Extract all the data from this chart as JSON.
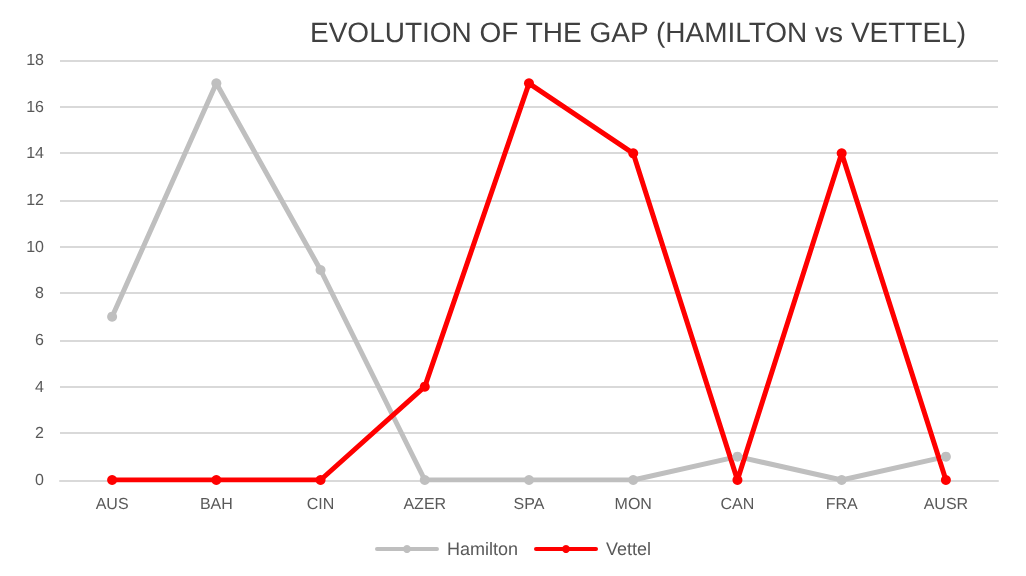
{
  "chart_data": {
    "type": "line",
    "title": "EVOLUTION OF THE GAP (HAMILTON vs VETTEL)",
    "categories": [
      "AUS",
      "BAH",
      "CIN",
      "AZER",
      "SPA",
      "MON",
      "CAN",
      "FRA",
      "AUSR"
    ],
    "series": [
      {
        "name": "Hamilton",
        "color": "#bfbfbf",
        "values": [
          7,
          17,
          9,
          0,
          0,
          0,
          1,
          0,
          1
        ]
      },
      {
        "name": "Vettel",
        "color": "#ff0000",
        "values": [
          0,
          0,
          0,
          4,
          17,
          14,
          0,
          14,
          0
        ]
      }
    ],
    "ylim": [
      0,
      18
    ],
    "yticks": [
      0,
      2,
      4,
      6,
      8,
      10,
      12,
      14,
      16,
      18
    ],
    "grid": "y",
    "legend": "bottom",
    "marker": "circle",
    "line_style": "solid"
  }
}
